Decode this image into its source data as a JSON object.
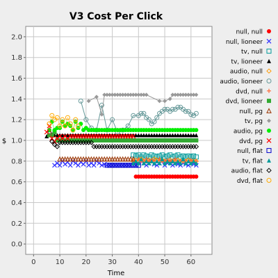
{
  "chart_data": {
    "type": "scatter",
    "title": "V3 Cost Per Click",
    "xlabel": "Time",
    "ylabel": "$",
    "xlim": [
      -3,
      68
    ],
    "ylim": [
      -0.1,
      2.1
    ],
    "xticks": [
      0,
      10,
      20,
      30,
      40,
      50,
      60
    ],
    "yticks": [
      0.0,
      0.2,
      0.4,
      0.6,
      0.8,
      1.0,
      1.2,
      1.4,
      1.6,
      1.8,
      2.0
    ],
    "grid": true,
    "legend_position": "right",
    "series": [
      {
        "name": "null, null",
        "color": "#ff0000",
        "marker": "circle-filled",
        "x": [
          39,
          40,
          41,
          42,
          43,
          44,
          45,
          46,
          47,
          48,
          49,
          50,
          51,
          52,
          53,
          54,
          55,
          56,
          57,
          58,
          59,
          60,
          61,
          62
        ],
        "y": [
          0.65,
          0.65,
          0.65,
          0.65,
          0.65,
          0.65,
          0.65,
          0.65,
          0.65,
          0.65,
          0.65,
          0.65,
          0.65,
          0.65,
          0.65,
          0.65,
          0.65,
          0.65,
          0.65,
          0.65,
          0.65,
          0.65,
          0.65,
          0.65
        ]
      },
      {
        "name": "null, lioneer",
        "color": "#3333ff",
        "marker": "x",
        "x": [
          8,
          9,
          10,
          11,
          12,
          13,
          14,
          15,
          16,
          17,
          18,
          19,
          20,
          21,
          22,
          23,
          24,
          25,
          26,
          27,
          28,
          29,
          30,
          31,
          32,
          33,
          34,
          35,
          36,
          37,
          38,
          39,
          40,
          41,
          42,
          43,
          44,
          45,
          46,
          47,
          48,
          49,
          50,
          51,
          52,
          53,
          54,
          55,
          56,
          57,
          58,
          59,
          60,
          61,
          62
        ],
        "y": [
          0.76,
          0.78,
          0.76,
          0.8,
          0.77,
          0.79,
          0.76,
          0.8,
          0.78,
          0.76,
          0.79,
          0.77,
          0.8,
          0.76,
          0.78,
          0.76,
          0.8,
          0.78,
          0.76,
          0.77,
          0.76,
          0.76,
          0.76,
          0.76,
          0.76,
          0.76,
          0.76,
          0.76,
          0.76,
          0.76,
          0.78,
          0.76,
          0.78,
          0.8,
          0.78,
          0.76,
          0.78,
          0.8,
          0.77,
          0.76,
          0.78,
          0.8,
          0.76,
          0.78,
          0.8,
          0.76,
          0.78,
          0.77,
          0.76,
          0.78,
          0.77,
          0.76,
          0.78,
          0.77,
          0.76
        ]
      },
      {
        "name": "tv, null",
        "color": "#009999",
        "marker": "square-open",
        "x": [
          38,
          39,
          40,
          41,
          42,
          43,
          44,
          45,
          46,
          47,
          48,
          49,
          50,
          51,
          52,
          53,
          54,
          55,
          56,
          57,
          58,
          59,
          60,
          61,
          62
        ],
        "y": [
          0.86,
          0.85,
          0.86,
          0.84,
          0.86,
          0.85,
          0.84,
          0.86,
          0.85,
          0.84,
          0.85,
          0.86,
          0.84,
          0.85,
          0.86,
          0.84,
          0.85,
          0.86,
          0.84,
          0.85,
          0.84,
          0.85,
          0.84,
          0.85,
          0.84
        ]
      },
      {
        "name": "tv, lioneer",
        "color": "#000000",
        "marker": "triangle-filled",
        "x": [
          5,
          6,
          7,
          8,
          9,
          10,
          11,
          12,
          13,
          14,
          15,
          16,
          17,
          18,
          19,
          20,
          21,
          22,
          23,
          24,
          25,
          26,
          27,
          28,
          29,
          30,
          31,
          32,
          33,
          34,
          35,
          36,
          37,
          38,
          39,
          40,
          41,
          42,
          43,
          44,
          45,
          46,
          47,
          48,
          49,
          50,
          51,
          52,
          53,
          54,
          55,
          56,
          57,
          58,
          59,
          60,
          61,
          62
        ],
        "y": [
          1.04,
          1.1,
          1.06,
          1.05,
          1.05,
          1.05,
          1.05,
          1.05,
          1.05,
          1.05,
          1.05,
          1.05,
          1.05,
          1.05,
          1.05,
          1.05,
          1.05,
          1.05,
          1.05,
          1.05,
          1.05,
          1.05,
          1.05,
          1.05,
          1.05,
          1.05,
          1.05,
          1.05,
          1.05,
          1.05,
          1.05,
          1.05,
          1.05,
          1.05,
          1.05,
          1.05,
          1.05,
          1.05,
          1.05,
          1.05,
          1.05,
          1.05,
          1.05,
          1.05,
          1.05,
          1.05,
          1.05,
          1.05,
          1.05,
          1.05,
          1.05,
          1.05,
          1.05,
          1.05,
          1.05,
          1.05,
          1.05,
          1.05
        ]
      },
      {
        "name": "audio, null",
        "color": "#ff9900",
        "marker": "diamond-open",
        "x": [
          38,
          39,
          40,
          41,
          42,
          43,
          44,
          45,
          46,
          47,
          48,
          49,
          50,
          51,
          52,
          53,
          54,
          55,
          56,
          57,
          58,
          59,
          60,
          61,
          62
        ],
        "y": [
          0.8,
          0.81,
          0.8,
          0.82,
          0.8,
          0.8,
          0.81,
          0.8,
          0.82,
          0.81,
          0.8,
          0.81,
          0.8,
          0.8,
          0.81,
          0.8,
          0.8,
          0.81,
          0.8,
          0.8,
          0.8,
          0.81,
          0.8,
          0.8,
          0.8
        ]
      },
      {
        "name": "audio, lioneer",
        "color": "#669999",
        "marker": "circle-open",
        "x": [
          18,
          20,
          22,
          24,
          26,
          28,
          30,
          32,
          34,
          36,
          38,
          40,
          41,
          42,
          43,
          44,
          45,
          46,
          47,
          48,
          49,
          50,
          51,
          52,
          53,
          54,
          55,
          56,
          57,
          58,
          59,
          60,
          61,
          62
        ],
        "y": [
          1.38,
          1.2,
          1.12,
          1.1,
          1.34,
          1.1,
          1.2,
          1.08,
          1.1,
          1.14,
          1.24,
          1.24,
          1.26,
          1.26,
          1.22,
          1.2,
          1.16,
          1.18,
          1.22,
          1.26,
          1.28,
          1.3,
          1.3,
          1.28,
          1.3,
          1.3,
          1.32,
          1.32,
          1.3,
          1.28,
          1.28,
          1.25,
          1.24,
          1.26
        ]
      },
      {
        "name": "dvd, null",
        "color": "#ff6633",
        "marker": "plus",
        "x": [
          38,
          39,
          40,
          41,
          42,
          43,
          44,
          45,
          46,
          47,
          48,
          49,
          50,
          51,
          52,
          53,
          54,
          55,
          56,
          57,
          58,
          59,
          60,
          61,
          62
        ],
        "y": [
          0.8,
          0.8,
          0.82,
          0.8,
          0.8,
          0.82,
          0.8,
          0.81,
          0.8,
          0.8,
          0.82,
          0.8,
          0.8,
          0.81,
          0.8,
          0.8,
          0.82,
          0.8,
          0.8,
          0.81,
          0.8,
          0.8,
          0.81,
          0.8,
          0.8
        ]
      },
      {
        "name": "dvd, lioneer",
        "color": "#33aa33",
        "marker": "square-filled",
        "x": [
          6,
          7,
          8,
          9,
          10,
          11,
          12,
          13,
          14,
          15,
          16,
          17,
          18,
          19,
          20,
          21,
          22,
          23,
          24,
          25,
          26,
          27,
          28,
          29,
          30,
          31,
          32,
          33,
          34,
          35,
          36,
          37,
          38,
          39,
          40,
          41,
          42,
          43,
          44,
          45,
          46,
          47,
          48,
          49,
          50,
          51,
          52,
          53,
          54,
          55,
          56,
          57,
          58,
          59,
          60,
          61,
          62
        ],
        "y": [
          1.05,
          1.05,
          1.08,
          1.0,
          1.0,
          1.0,
          1.0,
          1.0,
          1.0,
          1.0,
          1.0,
          1.0,
          1.0,
          1.0,
          1.0,
          1.0,
          1.0,
          1.0,
          1.0,
          1.0,
          1.0,
          1.0,
          1.0,
          1.0,
          1.0,
          1.0,
          1.0,
          1.0,
          1.0,
          1.0,
          1.0,
          1.0,
          1.0,
          1.0,
          1.0,
          1.0,
          1.0,
          1.0,
          1.0,
          1.0,
          1.0,
          1.0,
          1.0,
          1.0,
          1.0,
          1.0,
          1.0,
          1.0,
          1.0,
          1.0,
          1.0,
          1.0,
          1.0,
          1.0,
          1.0,
          1.0,
          1.0
        ]
      },
      {
        "name": "null, pg",
        "color": "#993300",
        "marker": "triangle-open",
        "x": [
          10,
          11,
          12,
          13,
          14,
          15,
          16,
          17,
          18,
          19,
          20,
          21,
          22,
          23,
          24,
          25,
          26,
          27,
          28,
          29,
          30,
          31,
          32,
          33,
          34,
          35,
          36,
          37,
          38
        ],
        "y": [
          0.82,
          0.82,
          0.82,
          0.82,
          0.82,
          0.82,
          0.82,
          0.82,
          0.82,
          0.82,
          0.82,
          0.82,
          0.82,
          0.82,
          0.82,
          0.82,
          0.82,
          0.82,
          0.82,
          0.82,
          0.82,
          0.82,
          0.82,
          0.82,
          0.82,
          0.82,
          0.82,
          0.82,
          0.82
        ]
      },
      {
        "name": "tv, pg",
        "color": "#999999",
        "marker": "diamond-filled",
        "x": [
          21,
          24,
          26,
          27,
          28,
          29,
          30,
          31,
          32,
          33,
          34,
          35,
          36,
          37,
          38,
          39,
          40,
          41,
          42,
          43,
          48,
          50,
          52,
          53,
          54,
          55,
          56,
          57,
          58,
          59,
          60,
          61,
          62
        ],
        "y": [
          1.38,
          1.42,
          1.25,
          1.44,
          1.44,
          1.44,
          1.44,
          1.44,
          1.44,
          1.44,
          1.44,
          1.44,
          1.44,
          1.44,
          1.44,
          1.44,
          1.44,
          1.44,
          1.44,
          1.44,
          1.38,
          1.38,
          1.4,
          1.44,
          1.44,
          1.44,
          1.44,
          1.44,
          1.44,
          1.44,
          1.44,
          1.44,
          1.44
        ]
      },
      {
        "name": "audio, pg",
        "color": "#00ee00",
        "marker": "circle-filled",
        "x": [
          6,
          7,
          8,
          9,
          10,
          11,
          12,
          13,
          14,
          15,
          16,
          17,
          18,
          19,
          20,
          21,
          22,
          23,
          24,
          25,
          26,
          27,
          28,
          29,
          30,
          31,
          32,
          33,
          34,
          35,
          36,
          37,
          38,
          39,
          40,
          41,
          42,
          43,
          44,
          45,
          46,
          47,
          48,
          49,
          50,
          51,
          52,
          53,
          54,
          55,
          56,
          57,
          58,
          59,
          60,
          61,
          62
        ],
        "y": [
          1.1,
          1.18,
          1.1,
          1.12,
          1.12,
          1.18,
          1.14,
          1.16,
          1.14,
          1.1,
          1.18,
          1.12,
          1.16,
          1.1,
          1.12,
          1.1,
          1.1,
          1.1,
          1.1,
          1.1,
          1.1,
          1.1,
          1.1,
          1.1,
          1.1,
          1.1,
          1.1,
          1.1,
          1.1,
          1.1,
          1.1,
          1.1,
          1.1,
          1.1,
          1.1,
          1.1,
          1.1,
          1.1,
          1.1,
          1.1,
          1.1,
          1.1,
          1.1,
          1.1,
          1.1,
          1.1,
          1.1,
          1.1,
          1.1,
          1.1,
          1.1,
          1.1,
          1.1,
          1.1,
          1.1,
          1.1,
          1.1
        ]
      },
      {
        "name": "dvd, pg",
        "color": "#ff0000",
        "marker": "x",
        "x": [
          5,
          6,
          7,
          8,
          9,
          10,
          11,
          12,
          13,
          14,
          15,
          16,
          17,
          18,
          19,
          20,
          21,
          22,
          23,
          24,
          25,
          26,
          27,
          28,
          29,
          30,
          31,
          32,
          33,
          34,
          35,
          36,
          37,
          38
        ],
        "y": [
          1.08,
          1.14,
          1.02,
          0.99,
          1.02,
          1.04,
          1.02,
          1.04,
          1.02,
          1.04,
          1.04,
          1.04,
          1.04,
          1.04,
          1.04,
          1.04,
          1.04,
          1.04,
          1.04,
          1.04,
          1.04,
          1.04,
          1.04,
          1.04,
          1.04,
          1.04,
          1.04,
          1.04,
          1.04,
          1.04,
          1.04,
          1.04,
          1.04,
          1.04
        ]
      },
      {
        "name": "null, flat",
        "color": "#0000cc",
        "marker": "square-open",
        "x": [
          28,
          29,
          30,
          31,
          32,
          33,
          34,
          35,
          36,
          37,
          38,
          39,
          40
        ],
        "y": [
          0.76,
          0.76,
          0.76,
          0.76,
          0.76,
          0.76,
          0.76,
          0.76,
          0.76,
          0.76,
          0.76,
          0.76,
          0.76
        ]
      },
      {
        "name": "tv, flat",
        "color": "#009999",
        "marker": "triangle-filled",
        "x": [
          38,
          39,
          40,
          41,
          42,
          43,
          44,
          45,
          46,
          47,
          48,
          49,
          50,
          51,
          52,
          53,
          54,
          55,
          56,
          57,
          58,
          59,
          60,
          61,
          62
        ],
        "y": [
          0.78,
          0.8,
          0.78,
          0.82,
          0.78,
          0.8,
          0.78,
          0.8,
          0.78,
          0.8,
          0.78,
          0.82,
          0.78,
          0.8,
          0.78,
          0.8,
          0.78,
          0.8,
          0.78,
          0.82,
          0.78,
          0.8,
          0.78,
          0.8,
          0.78
        ]
      },
      {
        "name": "audio, flat",
        "color": "#000000",
        "marker": "diamond-open",
        "x": [
          7,
          8,
          9,
          10,
          11,
          12,
          13,
          14,
          15,
          16,
          17,
          18,
          19,
          20,
          21,
          22,
          23,
          24,
          25,
          26,
          27,
          28,
          29,
          30,
          31,
          32,
          33,
          34,
          35,
          36,
          37,
          38,
          39,
          40,
          41,
          42,
          43,
          44,
          45,
          46,
          47,
          48,
          49,
          50,
          51,
          52,
          53,
          54,
          55,
          56,
          57,
          58,
          59,
          60,
          61,
          62
        ],
        "y": [
          0.99,
          0.96,
          0.94,
          0.98,
          0.98,
          0.98,
          0.98,
          0.98,
          0.98,
          0.98,
          0.98,
          0.98,
          0.98,
          0.98,
          0.98,
          0.98,
          0.94,
          0.94,
          0.94,
          0.94,
          0.94,
          0.94,
          0.94,
          0.94,
          0.94,
          0.94,
          0.94,
          0.94,
          0.94,
          0.94,
          0.94,
          0.94,
          0.94,
          0.94,
          0.94,
          0.94,
          0.94,
          0.94,
          0.94,
          0.94,
          0.94,
          0.94,
          0.94,
          0.94,
          0.94,
          0.94,
          0.94,
          0.94,
          0.94,
          0.94,
          0.94,
          0.94,
          0.94,
          0.94,
          0.94,
          0.94
        ]
      },
      {
        "name": "dvd, flat",
        "color": "#ffaa00",
        "marker": "circle-open",
        "x": [
          6,
          7,
          8,
          9,
          10,
          11,
          12,
          13,
          14,
          15,
          16,
          17
        ],
        "y": [
          1.16,
          1.24,
          1.2,
          1.22,
          1.14,
          1.2,
          1.14,
          1.22,
          1.16,
          1.1,
          1.2,
          1.14
        ]
      }
    ]
  }
}
